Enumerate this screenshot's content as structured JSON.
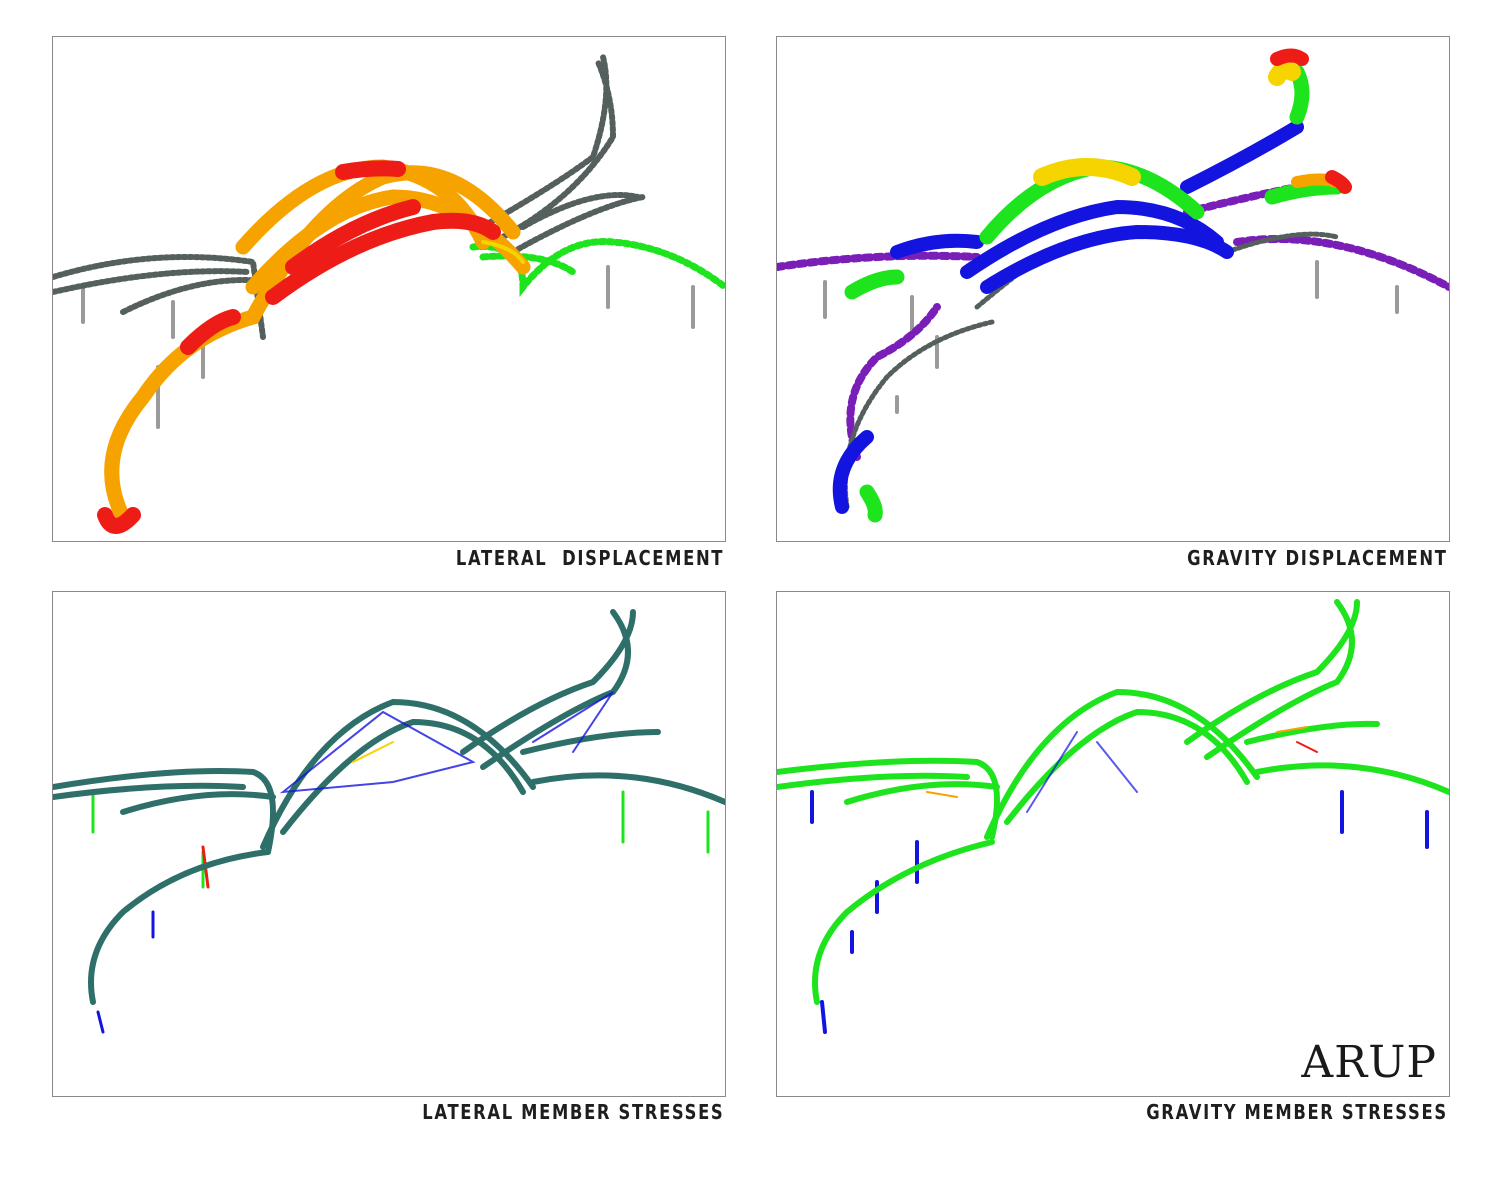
{
  "panels": [
    {
      "id": "lateral-displacement",
      "caption": "LATERAL  DISPLACEMENT"
    },
    {
      "id": "gravity-displacement",
      "caption": "GRAVITY DISPLACEMENT"
    },
    {
      "id": "lateral-member-stresses",
      "caption": "LATERAL MEMBER STRESSES"
    },
    {
      "id": "gravity-member-stresses",
      "caption": "GRAVITY MEMBER STRESSES"
    }
  ],
  "logo": {
    "text": "ARUP"
  },
  "colors": {
    "red": "#ee1c16",
    "orange": "#f6a300",
    "yellow": "#f5d400",
    "green": "#1ee41e",
    "blue": "#1414e0",
    "purple": "#7a1eb8",
    "teal": "#2f6f6a",
    "grey": "#55605e",
    "column": "#9a9a9a"
  }
}
